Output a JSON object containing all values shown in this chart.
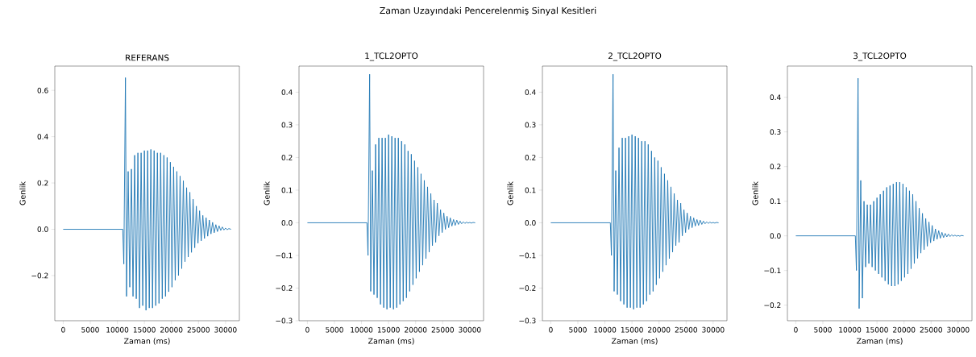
{
  "chart_data": [
    {
      "type": "line",
      "title": "REFERANS",
      "xlabel": "Zaman (ms)",
      "ylabel": "Genlik",
      "annotations": [
        "Zaman Uzayındaki Pencerelenmiş Sinyal Kesitleri"
      ],
      "x": [
        0,
        11000,
        11200,
        11500,
        11700,
        12000,
        12300,
        12600,
        12900,
        13200,
        13500,
        13800,
        14100,
        14400,
        14700,
        15000,
        15300,
        15600,
        15900,
        16200,
        16500,
        16800,
        17100,
        17400,
        17700,
        18000,
        18300,
        18600,
        18900,
        19200,
        19500,
        19800,
        20100,
        20400,
        20700,
        21000,
        21300,
        21600,
        21900,
        22200,
        22500,
        22800,
        23100,
        23400,
        23700,
        24000,
        24300,
        24600,
        24900,
        25200,
        25500,
        25800,
        26100,
        26400,
        26700,
        27000,
        27300,
        27600,
        27900,
        28200,
        28500,
        28800,
        29100,
        29400,
        29700,
        30000,
        30300,
        30600,
        31000
      ],
      "series": [
        {
          "color": "#1f77b4",
          "values": [
            0,
            0,
            -0.15,
            0.655,
            -0.29,
            0.25,
            -0.25,
            0.26,
            -0.29,
            0.32,
            -0.3,
            0.33,
            -0.34,
            0.33,
            -0.33,
            0.34,
            -0.35,
            0.34,
            -0.34,
            0.345,
            -0.34,
            0.34,
            -0.33,
            0.33,
            -0.32,
            0.33,
            -0.3,
            0.32,
            -0.29,
            0.31,
            -0.27,
            0.29,
            -0.25,
            0.27,
            -0.22,
            0.25,
            -0.2,
            0.23,
            -0.17,
            0.21,
            -0.14,
            0.18,
            -0.12,
            0.16,
            -0.1,
            0.13,
            -0.08,
            0.1,
            -0.06,
            0.08,
            -0.05,
            0.06,
            -0.04,
            0.05,
            -0.03,
            0.04,
            -0.02,
            0.03,
            -0.015,
            0.02,
            -0.01,
            0.015,
            -0.005,
            0.01,
            -0.003,
            0.005,
            -0.002,
            0.003,
            0
          ]
        }
      ],
      "xlim": [
        -1550,
        32550
      ],
      "ylim": [
        -0.395,
        0.705
      ],
      "xticks": [
        0,
        5000,
        10000,
        15000,
        20000,
        25000,
        30000
      ],
      "yticks": [
        {
          "value": -0.2,
          "label": "−0.2"
        },
        {
          "value": 0,
          "label": "0.0"
        },
        0.2,
        0.4,
        0.6
      ],
      "grid": false
    },
    {
      "type": "line",
      "title": "1_TCL2OPTO",
      "xlabel": "Zaman (ms)",
      "ylabel": "Genlik",
      "x": [
        0,
        11000,
        11200,
        11500,
        11700,
        12000,
        12300,
        12600,
        12900,
        13200,
        13500,
        13800,
        14100,
        14400,
        14700,
        15000,
        15300,
        15600,
        15900,
        16200,
        16500,
        16800,
        17100,
        17400,
        17700,
        18000,
        18300,
        18600,
        18900,
        19200,
        19500,
        19800,
        20100,
        20400,
        20700,
        21000,
        21300,
        21600,
        21900,
        22200,
        22500,
        22800,
        23100,
        23400,
        23700,
        24000,
        24300,
        24600,
        24900,
        25200,
        25500,
        25800,
        26100,
        26400,
        26700,
        27000,
        27300,
        27600,
        27900,
        28200,
        28500,
        28800,
        29100,
        29400,
        29700,
        30000,
        30300,
        30600,
        31000
      ],
      "series": [
        {
          "color": "#1f77b4",
          "values": [
            0,
            0,
            -0.1,
            0.455,
            -0.21,
            0.16,
            -0.22,
            0.24,
            -0.23,
            0.26,
            -0.25,
            0.26,
            -0.26,
            0.26,
            -0.265,
            0.27,
            -0.26,
            0.265,
            -0.265,
            0.26,
            -0.26,
            0.26,
            -0.25,
            0.25,
            -0.24,
            0.24,
            -0.23,
            0.22,
            -0.21,
            0.21,
            -0.19,
            0.19,
            -0.17,
            0.17,
            -0.15,
            0.15,
            -0.13,
            0.13,
            -0.11,
            0.11,
            -0.09,
            0.09,
            -0.07,
            0.07,
            -0.06,
            0.06,
            -0.04,
            0.04,
            -0.03,
            0.03,
            -0.02,
            0.02,
            -0.015,
            0.015,
            -0.01,
            0.01,
            -0.008,
            0.008,
            -0.005,
            0.005,
            -0.003,
            0.003,
            -0.002,
            0.002,
            -0.001,
            0.001,
            -0.001,
            0.001,
            0
          ]
        }
      ],
      "xlim": [
        -1550,
        32550
      ],
      "ylim": [
        -0.3,
        0.48
      ],
      "xticks": [
        0,
        5000,
        10000,
        15000,
        20000,
        25000,
        30000
      ],
      "yticks": [
        {
          "value": -0.3,
          "label": "−0.3"
        },
        {
          "value": -0.2,
          "label": "−0.2"
        },
        {
          "value": -0.1,
          "label": "−0.1"
        },
        {
          "value": 0,
          "label": "0.0"
        },
        0.1,
        0.2,
        0.3,
        0.4
      ],
      "grid": false
    },
    {
      "type": "line",
      "title": "2_TCL2OPTO",
      "xlabel": "Zaman (ms)",
      "ylabel": "Genlik",
      "x": [
        0,
        11000,
        11200,
        11500,
        11700,
        12000,
        12300,
        12600,
        12900,
        13200,
        13500,
        13800,
        14100,
        14400,
        14700,
        15000,
        15300,
        15600,
        15900,
        16200,
        16500,
        16800,
        17100,
        17400,
        17700,
        18000,
        18300,
        18600,
        18900,
        19200,
        19500,
        19800,
        20100,
        20400,
        20700,
        21000,
        21300,
        21600,
        21900,
        22200,
        22500,
        22800,
        23100,
        23400,
        23700,
        24000,
        24300,
        24600,
        24900,
        25200,
        25500,
        25800,
        26100,
        26400,
        26700,
        27000,
        27300,
        27600,
        27900,
        28200,
        28500,
        28800,
        29100,
        29400,
        29700,
        30000,
        30300,
        30600,
        31000
      ],
      "series": [
        {
          "color": "#1f77b4",
          "values": [
            0,
            0,
            -0.1,
            0.455,
            -0.21,
            0.16,
            -0.22,
            0.23,
            -0.24,
            0.26,
            -0.25,
            0.26,
            -0.26,
            0.265,
            -0.26,
            0.27,
            -0.265,
            0.265,
            -0.26,
            0.26,
            -0.26,
            0.25,
            -0.25,
            0.25,
            -0.24,
            0.24,
            -0.22,
            0.22,
            -0.21,
            0.2,
            -0.19,
            0.19,
            -0.17,
            0.17,
            -0.15,
            0.15,
            -0.13,
            0.13,
            -0.11,
            0.11,
            -0.09,
            0.09,
            -0.07,
            0.07,
            -0.06,
            0.06,
            -0.04,
            0.04,
            -0.03,
            0.03,
            -0.02,
            0.02,
            -0.015,
            0.015,
            -0.01,
            0.01,
            -0.008,
            0.008,
            -0.005,
            0.005,
            -0.003,
            0.003,
            -0.002,
            0.002,
            -0.001,
            0.001,
            -0.001,
            0.001,
            0
          ]
        }
      ],
      "xlim": [
        -1550,
        32550
      ],
      "ylim": [
        -0.3,
        0.48
      ],
      "xticks": [
        0,
        5000,
        10000,
        15000,
        20000,
        25000,
        30000
      ],
      "yticks": [
        {
          "value": -0.3,
          "label": "−0.3"
        },
        {
          "value": -0.2,
          "label": "−0.2"
        },
        {
          "value": -0.1,
          "label": "−0.1"
        },
        {
          "value": 0,
          "label": "0.0"
        },
        0.1,
        0.2,
        0.3,
        0.4
      ],
      "grid": false
    },
    {
      "type": "line",
      "title": "3_TCL2OPTO",
      "xlabel": "Zaman (ms)",
      "ylabel": "Genlik",
      "x": [
        0,
        11000,
        11200,
        11500,
        11700,
        12000,
        12300,
        12600,
        12900,
        13200,
        13500,
        13800,
        14100,
        14400,
        14700,
        15000,
        15300,
        15600,
        15900,
        16200,
        16500,
        16800,
        17100,
        17400,
        17700,
        18000,
        18300,
        18600,
        18900,
        19200,
        19500,
        19800,
        20100,
        20400,
        20700,
        21000,
        21300,
        21600,
        21900,
        22200,
        22500,
        22800,
        23100,
        23400,
        23700,
        24000,
        24300,
        24600,
        24900,
        25200,
        25500,
        25800,
        26100,
        26400,
        26700,
        27000,
        27300,
        27600,
        27900,
        28200,
        28500,
        28800,
        29100,
        29400,
        29700,
        30000,
        30300,
        30600,
        31000
      ],
      "series": [
        {
          "color": "#1f77b4",
          "values": [
            0,
            0,
            -0.1,
            0.455,
            -0.21,
            0.16,
            -0.18,
            0.1,
            -0.09,
            0.09,
            -0.08,
            0.09,
            -0.09,
            0.1,
            -0.1,
            0.11,
            -0.11,
            0.12,
            -0.12,
            0.13,
            -0.13,
            0.14,
            -0.14,
            0.145,
            -0.145,
            0.15,
            -0.145,
            0.155,
            -0.14,
            0.155,
            -0.13,
            0.15,
            -0.12,
            0.14,
            -0.11,
            0.13,
            -0.095,
            0.12,
            -0.08,
            0.1,
            -0.065,
            0.08,
            -0.05,
            0.065,
            -0.04,
            0.05,
            -0.03,
            0.04,
            -0.02,
            0.03,
            -0.015,
            0.02,
            -0.01,
            0.015,
            -0.007,
            0.01,
            -0.005,
            0.007,
            -0.003,
            0.005,
            -0.002,
            0.003,
            -0.001,
            0.002,
            -0.001,
            0.001,
            -0.001,
            0.001,
            0
          ]
        }
      ],
      "xlim": [
        -1550,
        32550
      ],
      "ylim": [
        -0.245,
        0.49
      ],
      "xticks": [
        0,
        5000,
        10000,
        15000,
        20000,
        25000,
        30000
      ],
      "yticks": [
        {
          "value": -0.2,
          "label": "−0.2"
        },
        {
          "value": -0.1,
          "label": "−0.1"
        },
        {
          "value": 0,
          "label": "0.0"
        },
        0.1,
        0.2,
        0.3,
        0.4
      ],
      "grid": false
    }
  ]
}
